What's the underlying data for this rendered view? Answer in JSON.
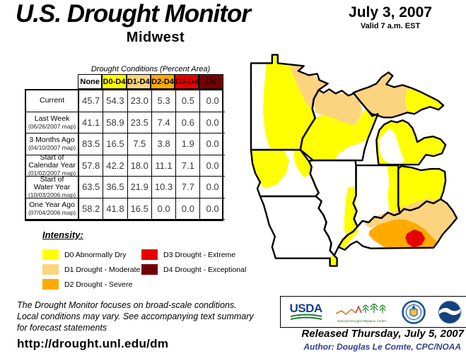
{
  "header": {
    "title": "U.S. Drought Monitor",
    "region": "Midwest",
    "date": "July 3, 2007",
    "valid": "Valid 7 a.m. EST"
  },
  "table": {
    "caption": "Drought Conditions (Percent Area)",
    "columns": [
      {
        "label": "None",
        "bg": "#FFFFFF",
        "fg": "#000000"
      },
      {
        "label": "D0-D4",
        "bg": "#FFFF00",
        "fg": "#000000"
      },
      {
        "label": "D1-D4",
        "bg": "#FCD37F",
        "fg": "#000000"
      },
      {
        "label": "D2-D4",
        "bg": "#FFAA00",
        "fg": "#000000"
      },
      {
        "label": "D3-D4",
        "bg": "#E60000",
        "fg": "#400000"
      },
      {
        "label": "D4",
        "bg": "#730000",
        "fg": "#2b0000"
      }
    ],
    "rows": [
      {
        "label_lines": [
          "Current"
        ],
        "note": "",
        "values": [
          "45.7",
          "54.3",
          "23.0",
          "5.3",
          "0.5",
          "0.0"
        ]
      },
      {
        "label_lines": [
          "Last Week"
        ],
        "note": "(06/26/2007 map)",
        "values": [
          "41.1",
          "58.9",
          "23.5",
          "7.4",
          "0.6",
          "0.0"
        ]
      },
      {
        "label_lines": [
          "3 Months Ago"
        ],
        "note": "(04/10/2007 map)",
        "values": [
          "83.5",
          "16.5",
          "7.5",
          "3.8",
          "1.9",
          "0.0"
        ]
      },
      {
        "label_lines": [
          "Start of",
          "Calendar Year"
        ],
        "note": "(01/02/2007 map)",
        "values": [
          "57.8",
          "42.2",
          "18.0",
          "11.1",
          "7.1",
          "0.0"
        ]
      },
      {
        "label_lines": [
          "Start of",
          "Water Year"
        ],
        "note": "(10/03/2006 map)",
        "values": [
          "63.5",
          "36.5",
          "21.9",
          "10.3",
          "7.7",
          "0.0"
        ]
      },
      {
        "label_lines": [
          "One Year Ago"
        ],
        "note": "(07/04/2006 map)",
        "values": [
          "58.2",
          "41.8",
          "16.5",
          "0.0",
          "0.0",
          "0.0"
        ]
      }
    ]
  },
  "legend": {
    "title": "Intensity:",
    "items": [
      {
        "code": "d0",
        "label": "D0 Abnormally Dry",
        "color": "#FFFF00",
        "col": 0,
        "row": 0
      },
      {
        "code": "d1",
        "label": "D1 Drought - Moderate",
        "color": "#FCD37F",
        "col": 0,
        "row": 1
      },
      {
        "code": "d2",
        "label": "D2 Drought - Severe",
        "color": "#FFAA00",
        "col": 0,
        "row": 2
      },
      {
        "code": "d3",
        "label": "D3 Drought - Extreme",
        "color": "#E60000",
        "col": 1,
        "row": 0
      },
      {
        "code": "d4",
        "label": "D4 Drought - Exceptional",
        "color": "#730000",
        "col": 1,
        "row": 1
      }
    ]
  },
  "notes": {
    "lines": [
      "The Drought Monitor focuses on broad-scale conditions.",
      "Local conditions may vary. See accompanying text summary",
      "for forecast statements"
    ],
    "url": "http://drought.unl.edu/dm"
  },
  "logos": {
    "usda_label": "USDA",
    "ndmc_label": "National Drought Mitigation Center"
  },
  "release": {
    "released": "Released Thursday, July 5, 2007",
    "author": "Author: Douglas Le Comte, CPC/NOAA"
  }
}
